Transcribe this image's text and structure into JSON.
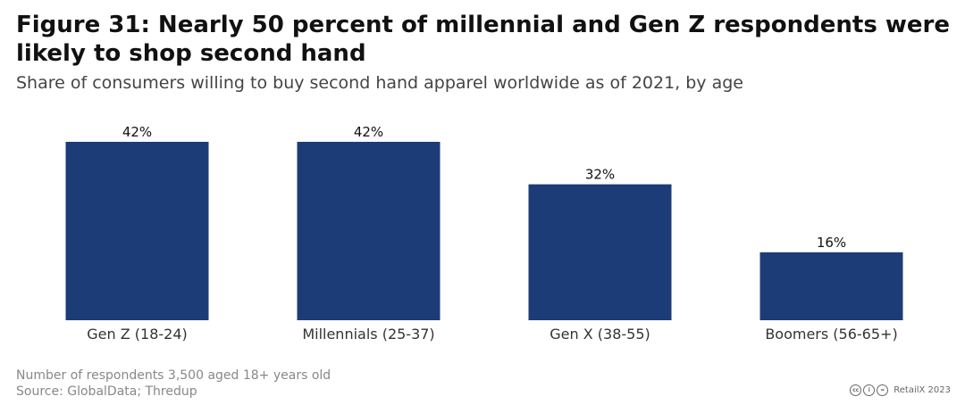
{
  "header": {
    "title": "Figure 31: Nearly 50 percent of millennial and Gen Z respondents were likely to shop second hand",
    "subtitle": "Share of consumers willing to buy second hand apparel worldwide as of 2021, by age"
  },
  "chart_data": {
    "type": "bar",
    "title": "Figure 31: Nearly 50 percent of millennial and Gen Z respondents were likely to shop second hand",
    "subtitle": "Share of consumers willing to buy second hand apparel worldwide as of 2021, by age",
    "categories": [
      "Gen Z (18-24)",
      "Millennials (25-37)",
      "Gen X (38-55)",
      "Boomers (56-65+)"
    ],
    "values": [
      42,
      42,
      32,
      16
    ],
    "data_labels": [
      "42%",
      "42%",
      "32%",
      "16%"
    ],
    "unit": "%",
    "xlabel": "",
    "ylabel": "",
    "ylim": [
      0,
      42
    ],
    "grid": false,
    "bar_color": "#1c3c78"
  },
  "footer": {
    "note": "Number of respondents 3,500 aged 18+ years old",
    "source": "Source: GlobalData; Thredup",
    "license_icon": "creative-commons-icon",
    "copyright": "RetailX 2023"
  }
}
